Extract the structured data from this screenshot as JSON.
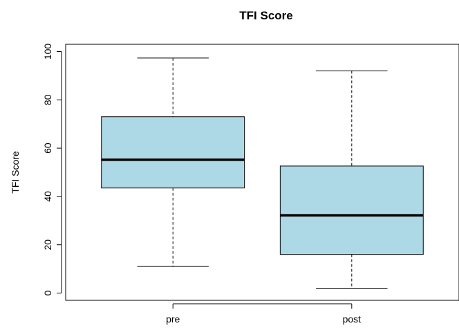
{
  "chart_data": {
    "type": "boxplot",
    "title": "TFI Score",
    "xlabel": "",
    "ylabel": "TFI Score",
    "ylim": [
      -3,
      103
    ],
    "yticks": [
      0,
      20,
      40,
      60,
      80,
      100
    ],
    "categories": [
      "pre",
      "post"
    ],
    "boxes": [
      {
        "name": "pre",
        "min": 11,
        "q1": 43.5,
        "median": 55.2,
        "q3": 73,
        "max": 97.3
      },
      {
        "name": "post",
        "min": 2,
        "q1": 16,
        "median": 32.2,
        "q3": 52.6,
        "max": 92
      }
    ],
    "box_color": "#add8e6",
    "grid": false,
    "legend": "none"
  }
}
